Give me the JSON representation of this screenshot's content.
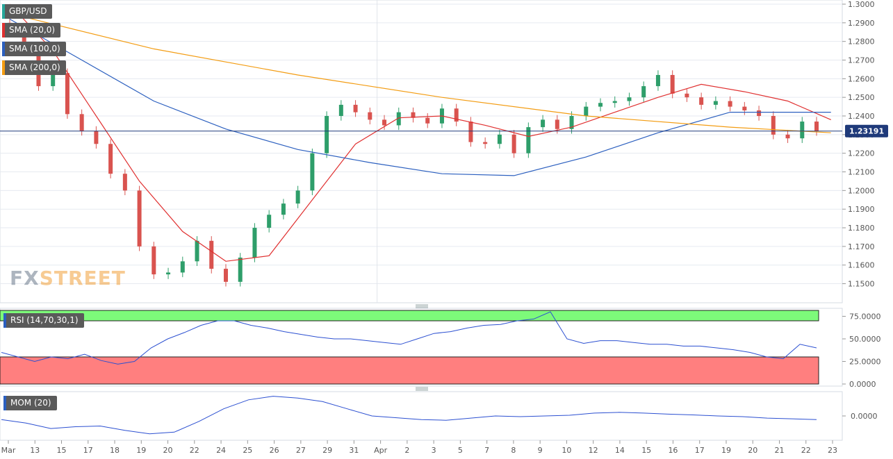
{
  "legends": {
    "main": [
      {
        "label": "GBP/USD",
        "color": "#26a69a"
      },
      {
        "label": "SMA (20,0)",
        "color": "#e03030"
      },
      {
        "label": "SMA (100,0)",
        "color": "#2b5fbf"
      },
      {
        "label": "SMA (200,0)",
        "color": "#f39c12"
      }
    ],
    "rsi": {
      "label": "RSI (14,70,30,1)",
      "color": "#2b5fbf"
    },
    "mom": {
      "label": "MOM (20)",
      "color": "#2b5fbf"
    }
  },
  "logo": {
    "part1": "FX",
    "part2": "STREET"
  },
  "price_marker": {
    "value": "1.23191",
    "color": "#1f3a7a"
  },
  "colors": {
    "up": "#2e9e6a",
    "down": "#d9534f",
    "grid": "#e6eaf0",
    "axis_text": "#555555",
    "rsi_overbought": "#7dfa7a",
    "rsi_oversold": "#ff7f7f"
  },
  "chart_data": [
    {
      "type": "line",
      "title": "GBP/USD",
      "x_ticks": [
        "Mar",
        "13",
        "15",
        "17",
        "18",
        "19",
        "20",
        "22",
        "24",
        "25",
        "26",
        "27",
        "29",
        "31",
        "Apr",
        "2",
        "3",
        "5",
        "7",
        "8",
        "9",
        "10",
        "12",
        "14",
        "15",
        "16",
        "17",
        "19",
        "20",
        "21",
        "22",
        "23"
      ],
      "ylim": [
        1.142,
        1.3
      ],
      "y_ticks": [
        "1.3000",
        "1.2900",
        "1.2800",
        "1.2700",
        "1.2600",
        "1.2500",
        "1.2400",
        "1.2300",
        "1.2200",
        "1.2100",
        "1.2000",
        "1.1900",
        "1.1800",
        "1.1700",
        "1.1600",
        "1.1500"
      ],
      "last_price": 1.23191,
      "series": [
        {
          "name": "GBP/USD",
          "kind": "candles_close",
          "values": [
            1.286,
            1.276,
            1.256,
            1.263,
            1.241,
            1.232,
            1.225,
            1.209,
            1.2,
            1.17,
            1.155,
            1.156,
            1.162,
            1.173,
            1.158,
            1.151,
            1.164,
            1.18,
            1.187,
            1.193,
            1.2,
            1.22,
            1.24,
            1.246,
            1.242,
            1.238,
            1.235,
            1.242,
            1.239,
            1.236,
            1.244,
            1.237,
            1.226,
            1.225,
            1.23,
            1.22,
            1.234,
            1.238,
            1.233,
            1.24,
            1.245,
            1.247,
            1.248,
            1.25,
            1.256,
            1.262,
            1.252,
            1.25,
            1.246,
            1.248,
            1.245,
            1.243,
            1.24,
            1.23,
            1.228,
            1.237,
            1.2319
          ]
        },
        {
          "name": "SMA (20,0)",
          "x": [
            0,
            3,
            6,
            9,
            12,
            15,
            18,
            21,
            24,
            27,
            30,
            33,
            36,
            39,
            42,
            45,
            48,
            51,
            54,
            57
          ],
          "values": [
            1.3,
            1.275,
            1.24,
            1.205,
            1.178,
            1.162,
            1.165,
            1.195,
            1.225,
            1.239,
            1.24,
            1.235,
            1.229,
            1.234,
            1.242,
            1.25,
            1.257,
            1.253,
            1.248,
            1.238
          ]
        },
        {
          "name": "SMA (100,0)",
          "x": [
            0,
            5,
            10,
            15,
            20,
            25,
            30,
            35,
            40,
            45,
            50,
            53,
            57
          ],
          "values": [
            1.292,
            1.27,
            1.248,
            1.233,
            1.222,
            1.215,
            1.209,
            1.208,
            1.218,
            1.231,
            1.242,
            1.242,
            1.242
          ]
        },
        {
          "name": "SMA (200,0)",
          "x": [
            0,
            10,
            20,
            30,
            40,
            50,
            57
          ],
          "values": [
            1.295,
            1.276,
            1.262,
            1.25,
            1.24,
            1.234,
            1.231
          ]
        }
      ]
    },
    {
      "type": "line",
      "title": "RSI (14,70,30,1)",
      "ylim": [
        0,
        80
      ],
      "y_ticks": [
        "75.0000",
        "50.0000",
        "25.0000",
        "0.0000"
      ],
      "overbought": 70,
      "oversold": 30,
      "series": [
        {
          "name": "RSI (14,70,30,1)",
          "values": [
            35,
            30,
            25,
            30,
            28,
            33,
            26,
            22,
            25,
            40,
            50,
            57,
            65,
            70,
            70,
            65,
            62,
            58,
            55,
            52,
            50,
            50,
            48,
            46,
            44,
            50,
            56,
            58,
            62,
            65,
            66,
            70,
            72,
            80,
            50,
            45,
            48,
            48,
            46,
            44,
            44,
            42,
            42,
            40,
            38,
            35,
            30,
            28,
            44,
            40
          ]
        }
      ]
    },
    {
      "type": "line",
      "title": "MOM (20)",
      "y_ticks": [
        "0.0000"
      ],
      "series": [
        {
          "name": "MOM (20)",
          "values": [
            -0.01,
            -0.02,
            -0.035,
            -0.03,
            -0.028,
            -0.04,
            -0.05,
            -0.045,
            -0.015,
            0.02,
            0.045,
            0.055,
            0.05,
            0.04,
            0.02,
            0.0,
            -0.005,
            -0.01,
            -0.012,
            -0.006,
            0.0,
            -0.002,
            0.0,
            0.002,
            0.008,
            0.01,
            0.008,
            0.005,
            0.003,
            0.0,
            -0.002,
            -0.006,
            -0.008,
            -0.01
          ]
        }
      ]
    }
  ]
}
